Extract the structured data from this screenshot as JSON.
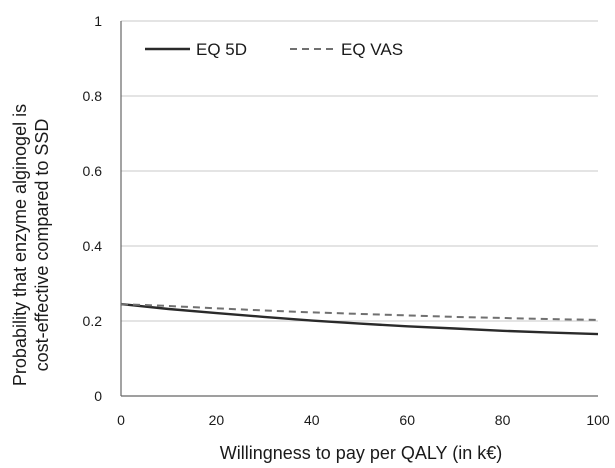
{
  "chart_data": {
    "type": "line",
    "title": "",
    "xlabel": "Willingness to pay per QALY (in k€)",
    "ylabel_lines": [
      "Probability that enzyme alginogel is",
      "cost-effective compared to SSD"
    ],
    "xlim": [
      0,
      100
    ],
    "ylim": [
      0,
      1
    ],
    "xticks": [
      0,
      20,
      40,
      60,
      80,
      100
    ],
    "yticks": [
      0,
      0.2,
      0.4,
      0.6,
      0.8,
      1
    ],
    "ytick_labels": [
      "0",
      "0.2",
      "0.4",
      "0.6",
      "0.8",
      "1"
    ],
    "grid": true,
    "legend_position": "top-left",
    "series": [
      {
        "name": "EQ 5D",
        "style": "solid",
        "color": "#2a2a2a",
        "x": [
          0,
          10,
          20,
          30,
          40,
          50,
          60,
          70,
          80,
          90,
          100
        ],
        "y": [
          0.245,
          0.232,
          0.221,
          0.211,
          0.201,
          0.193,
          0.186,
          0.18,
          0.174,
          0.169,
          0.165
        ]
      },
      {
        "name": "EQ VAS",
        "style": "dashed",
        "color": "#707070",
        "x": [
          0,
          10,
          20,
          30,
          40,
          50,
          60,
          70,
          80,
          90,
          100
        ],
        "y": [
          0.245,
          0.24,
          0.234,
          0.228,
          0.223,
          0.219,
          0.215,
          0.211,
          0.208,
          0.205,
          0.203
        ]
      }
    ]
  }
}
